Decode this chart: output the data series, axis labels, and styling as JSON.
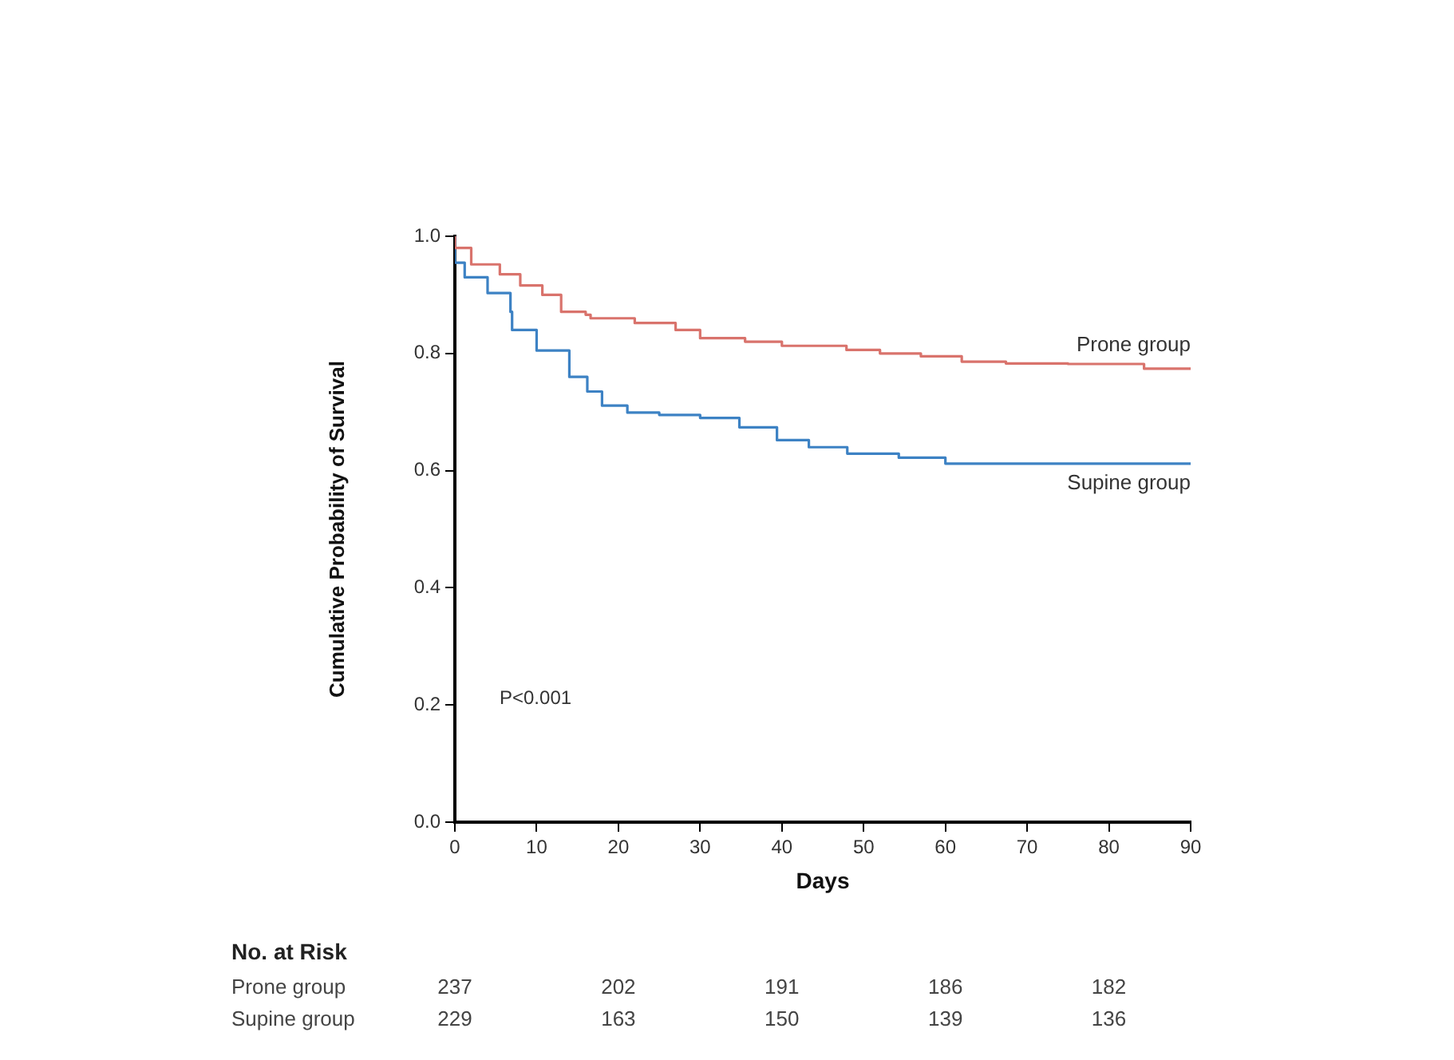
{
  "chart_data": {
    "type": "step",
    "xlabel": "Days",
    "ylabel": "Cumulative Probability of Survival",
    "xlim": [
      0,
      90
    ],
    "xticks": [
      0,
      10,
      20,
      30,
      40,
      50,
      60,
      70,
      80,
      90
    ],
    "ylim": [
      0,
      1
    ],
    "yticks": [
      {
        "value": 0,
        "label": "0.0"
      },
      {
        "value": 0.2,
        "label": "0.2"
      },
      {
        "value": 0.4,
        "label": "0.4"
      },
      {
        "value": 0.6,
        "label": "0.6"
      },
      {
        "value": 0.8,
        "label": "0.8"
      },
      {
        "value": 1,
        "label": "1.0"
      }
    ],
    "grid": false,
    "legend": false,
    "marker": "none",
    "line_style": "solid",
    "series": [
      {
        "name": "Prone group",
        "color": "#d9736c",
        "x": [
          0,
          2,
          5.5,
          8,
          10.7,
          13,
          16,
          16.6,
          22,
          27,
          30,
          35.5,
          40,
          47.9,
          52,
          57,
          62,
          67.4,
          75,
          84.3,
          85,
          90
        ],
        "values": [
          1,
          0.98,
          0.952,
          0.935,
          0.916,
          0.9,
          0.871,
          0.866,
          0.86,
          0.852,
          0.84,
          0.826,
          0.82,
          0.813,
          0.806,
          0.8,
          0.795,
          0.786,
          0.783,
          0.782,
          0.774,
          0.774
        ]
      },
      {
        "name": "Supine group",
        "color": "#3d82c4",
        "x": [
          0,
          1.2,
          4,
          6.8,
          7,
          10,
          14,
          16.2,
          18,
          21.1,
          25,
          30,
          34.8,
          39.4,
          43.3,
          48,
          54.3,
          60,
          66.7,
          90
        ],
        "values": [
          1,
          0.955,
          0.93,
          0.903,
          0.871,
          0.84,
          0.805,
          0.76,
          0.735,
          0.711,
          0.699,
          0.695,
          0.69,
          0.674,
          0.652,
          0.64,
          0.629,
          0.622,
          0.612,
          0.612
        ]
      }
    ],
    "annotations": [
      "P<0.001",
      "No. at Risk",
      "Prone group",
      "237",
      "202",
      "191",
      "186",
      "182",
      "Supine group",
      "229",
      "163",
      "150",
      "139",
      "136"
    ]
  }
}
